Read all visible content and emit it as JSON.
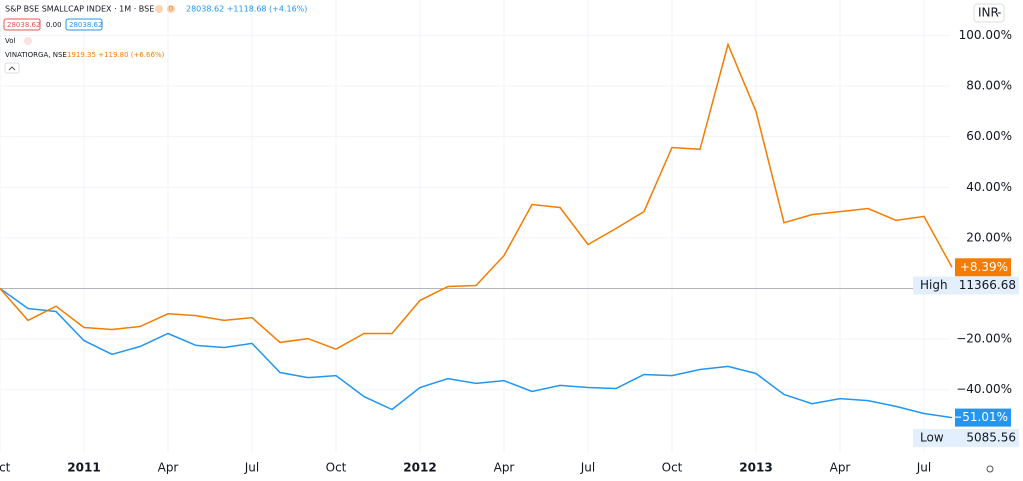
{
  "chart_data": {
    "type": "line",
    "categories": [
      "Oct",
      null,
      null,
      "2011",
      null,
      null,
      "Apr",
      null,
      null,
      "Jul",
      null,
      null,
      "Oct",
      null,
      null,
      "2012",
      null,
      null,
      "Apr",
      null,
      null,
      "Jul",
      null,
      null,
      "Oct",
      null,
      null,
      "2013",
      null,
      null,
      "Apr",
      null,
      null,
      "Jul",
      null
    ],
    "series": [
      {
        "name": "S&P BSE SMALLCAP INDEX · 1M · BSE",
        "color": "#2196f3",
        "values": [
          0,
          -7.9,
          -9.1,
          -20.6,
          -26,
          -22.9,
          -17.8,
          -22.5,
          -23.3,
          -21.7,
          -33.2,
          -35.2,
          -34.4,
          -42.7,
          -47.8,
          -39.1,
          -35.6,
          -37.5,
          -36.4,
          -40.7,
          -38.3,
          -39.1,
          -39.5,
          -34,
          -34.4,
          -32,
          -30.8,
          -33.6,
          -41.9,
          -45.5,
          -43.5,
          -44.3,
          -46.6,
          -49.4,
          -51.01
        ],
        "value_labels": [
          null,
          null,
          null,
          null,
          null,
          null,
          null,
          null,
          null,
          null,
          null,
          null,
          null,
          null,
          null,
          null,
          null,
          null,
          null,
          null,
          null,
          null,
          null,
          null,
          null,
          null,
          null,
          null,
          null,
          null,
          null,
          null,
          null,
          null,
          "−51.01%"
        ]
      },
      {
        "name": "VINATIORGA, NSE",
        "color": "#f57c00",
        "values": [
          0,
          -12.6,
          -7,
          -15.4,
          -16.2,
          -15,
          -10,
          -10.7,
          -12.6,
          -11.5,
          -21.3,
          -19.8,
          -24,
          -17.8,
          -17.8,
          -4.7,
          0.8,
          1.2,
          13,
          33.2,
          32,
          17.4,
          23.7,
          30.4,
          55.7,
          55,
          96.4,
          70,
          26,
          29.2,
          30.4,
          31.6,
          26.9,
          28.5,
          8.39
        ],
        "value_labels": [
          null,
          null,
          null,
          null,
          null,
          null,
          null,
          null,
          null,
          null,
          null,
          null,
          null,
          null,
          null,
          null,
          null,
          null,
          null,
          null,
          null,
          null,
          null,
          null,
          null,
          null,
          null,
          null,
          null,
          null,
          null,
          null,
          null,
          null,
          "+8.39%"
        ]
      }
    ],
    "ylim": [
      -65,
      114
    ],
    "yticks": [
      {
        "value": -40,
        "label": "−40.00%"
      },
      {
        "value": -20,
        "label": "−20.00%"
      },
      {
        "value": 20,
        "label": "20.00%"
      },
      {
        "value": 40,
        "label": "40.00%"
      },
      {
        "value": 60,
        "label": "60.00%"
      },
      {
        "value": 80,
        "label": "80.00%"
      },
      {
        "value": 100,
        "label": "100.00%"
      }
    ],
    "grid": true,
    "header": {
      "main_quote": "28038.62 +1118.68 (+4.16%)",
      "bid": "28038.62",
      "spread": "0.00",
      "ask": "28038.62",
      "badge": "D",
      "vol": "Vol",
      "compare_quote": "1919.35 +119.80 (+6.66%)",
      "currency": "INR",
      "high_label": "High",
      "high_value": "11366.68",
      "low_label": "Low",
      "low_value": "5085.56"
    }
  }
}
